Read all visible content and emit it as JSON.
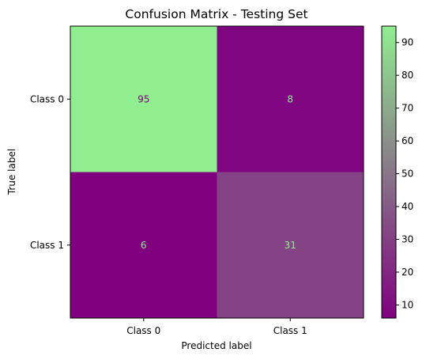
{
  "chart_data": {
    "type": "heatmap",
    "title": "Confusion Matrix - Testing Set",
    "xlabel": "Predicted label",
    "ylabel": "True label",
    "x_categories": [
      "Class 0",
      "Class 1"
    ],
    "y_categories": [
      "Class 0",
      "Class 1"
    ],
    "values": [
      [
        95,
        8
      ],
      [
        6,
        31
      ]
    ],
    "colorbar": {
      "min": 6,
      "max": 95,
      "ticks": [
        10,
        20,
        30,
        40,
        50,
        60,
        70,
        80,
        90
      ],
      "low_color": "#800080",
      "high_color": "#90ee90"
    },
    "text_colors": {
      "on_light": "#800080",
      "on_dark": "#90ee90"
    },
    "grid": false
  }
}
